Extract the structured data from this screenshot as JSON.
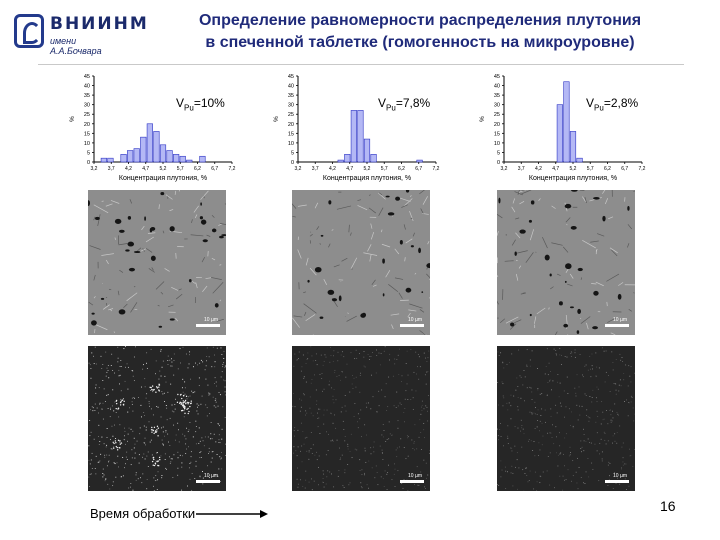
{
  "header": {
    "logo_name": "ВНИИНМ",
    "logo_sub": "имени А.А.Бочвара",
    "title_line1": "Определение равномерности распределения плутония",
    "title_line2": "в спеченной таблетке (гомогенность на микроуровне)"
  },
  "chart_data": [
    {
      "type": "bar",
      "categories": [
        "3,2",
        "3,4",
        "3,6",
        "3,8",
        "4,0",
        "4,2",
        "4,4",
        "4,6",
        "4,8",
        "5,0",
        "5,2",
        "5,4",
        "5,6",
        "5,8",
        "6,0",
        "6,2",
        "6,4",
        "6,6",
        "6,8",
        "7,0",
        "7,2"
      ],
      "values": [
        0,
        2,
        2,
        0,
        4,
        6,
        7,
        13,
        20,
        16,
        9,
        6,
        4,
        3,
        1,
        0,
        3,
        0,
        0,
        0,
        0
      ],
      "xlabel": "Концентрация плутония, %",
      "ylabel": "%",
      "ylim": [
        0,
        45
      ],
      "yticks": [
        0,
        5,
        10,
        15,
        20,
        25,
        30,
        35,
        40,
        45
      ],
      "xticks": [
        "3,2",
        "3,7",
        "4,2",
        "4,7",
        "5,2",
        "5,7",
        "6,2",
        "6,7",
        "7,2"
      ],
      "annotation": {
        "prefix": "V",
        "sub": "Pu",
        "suffix": "=10%"
      }
    },
    {
      "type": "bar",
      "categories": [
        "3,2",
        "3,4",
        "3,6",
        "3,8",
        "4,0",
        "4,2",
        "4,4",
        "4,6",
        "4,8",
        "5,0",
        "5,2",
        "5,4",
        "5,6",
        "5,8",
        "6,0",
        "6,2",
        "6,4",
        "6,6",
        "6,8",
        "7,0",
        "7,2"
      ],
      "values": [
        0,
        0,
        0,
        0,
        0,
        0,
        1,
        4,
        27,
        27,
        12,
        4,
        0,
        0,
        0,
        0,
        0,
        0,
        1,
        0,
        0
      ],
      "xlabel": "Концентрация плутония, %",
      "ylabel": "%",
      "ylim": [
        0,
        45
      ],
      "yticks": [
        0,
        5,
        10,
        15,
        20,
        25,
        30,
        35,
        40,
        45
      ],
      "xticks": [
        "3,2",
        "3,7",
        "4,2",
        "4,7",
        "5,2",
        "5,7",
        "6,2",
        "6,7",
        "7,2"
      ],
      "annotation": {
        "prefix": "V",
        "sub": "Pu",
        "suffix": "=7,8%"
      }
    },
    {
      "type": "bar",
      "categories": [
        "3,2",
        "3,4",
        "3,6",
        "3,8",
        "4,0",
        "4,2",
        "4,4",
        "4,6",
        "4,8",
        "5,0",
        "5,2",
        "5,4",
        "5,6",
        "5,8",
        "6,0",
        "6,2",
        "6,4",
        "6,6",
        "6,8",
        "7,0",
        "7,2"
      ],
      "values": [
        0,
        0,
        0,
        0,
        0,
        0,
        0,
        0,
        30,
        42,
        16,
        2,
        0,
        0,
        0,
        0,
        0,
        0,
        0,
        0,
        0
      ],
      "xlabel": "Концентрация плутония, %",
      "ylabel": "%",
      "ylim": [
        0,
        45
      ],
      "yticks": [
        0,
        5,
        10,
        15,
        20,
        25,
        30,
        35,
        40,
        45
      ],
      "xticks": [
        "3,2",
        "3,7",
        "4,2",
        "4,7",
        "5,2",
        "5,7",
        "6,2",
        "6,7",
        "7,2"
      ],
      "annotation": {
        "prefix": "V",
        "sub": "Pu",
        "suffix": "=2,8%"
      }
    }
  ],
  "scale_label": "10 µm",
  "footer": {
    "treatment_label": "Время обработки",
    "page_number": "16"
  }
}
